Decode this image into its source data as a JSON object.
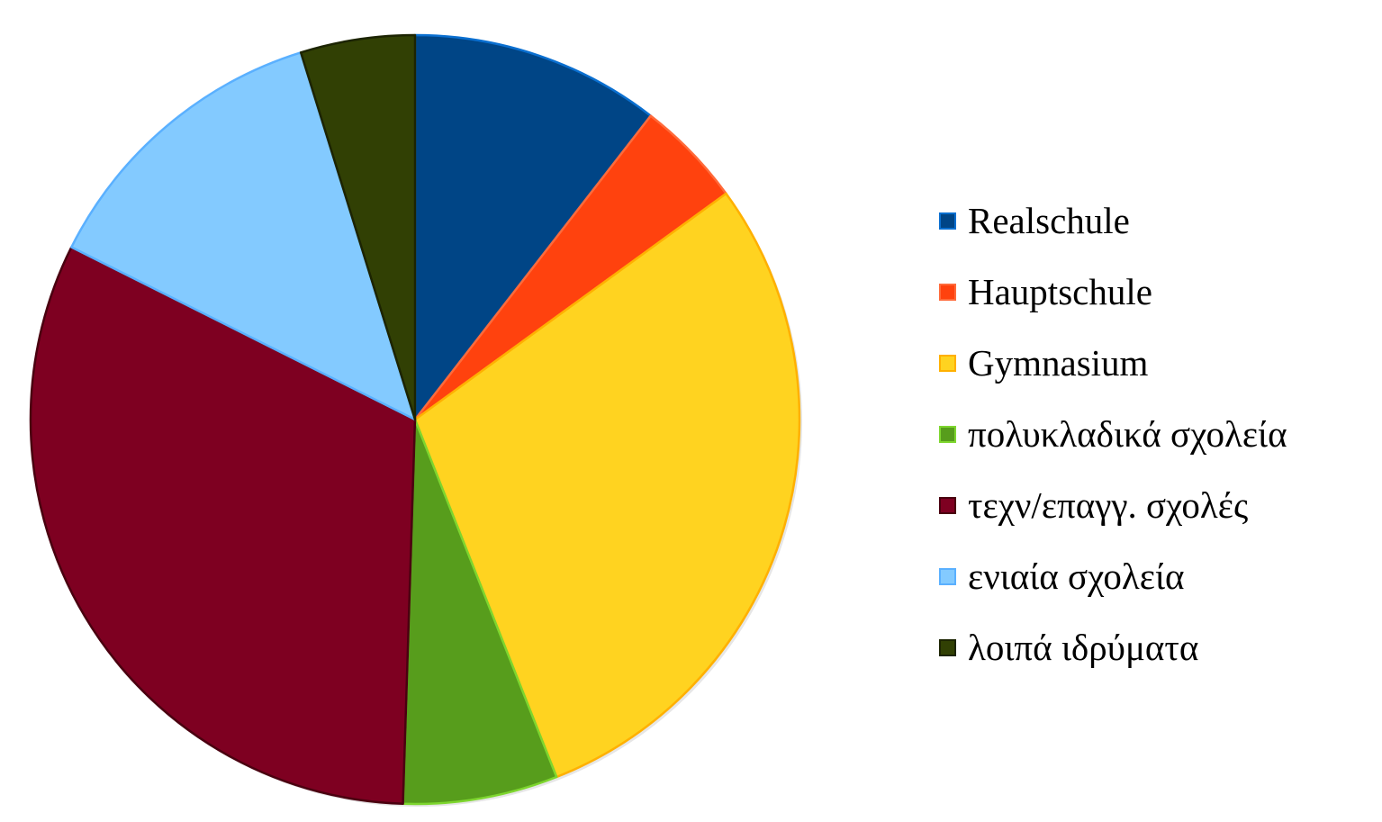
{
  "chart_data": {
    "type": "pie",
    "title": "",
    "legend_position": "right",
    "start_angle": "top, clockwise",
    "slices": [
      {
        "label": "Realschule",
        "value": 10.5,
        "color": "#004586",
        "edge": "#0a6fd0"
      },
      {
        "label": "Hauptschule",
        "value": 4.5,
        "color": "#ff420e",
        "edge": "#ff6a3a"
      },
      {
        "label": "Gymnasium",
        "value": 29.0,
        "color": "#ffd320",
        "edge": "#ffb000"
      },
      {
        "label": "πολυκλαδικά σχολεία",
        "value": 6.5,
        "color": "#579d1c",
        "edge": "#7ed62f"
      },
      {
        "label": "τεχν/επαγγ. σχολές",
        "value": 31.9,
        "color": "#7e0021",
        "edge": "#4a0010"
      },
      {
        "label": "ενιαία σχολεία",
        "value": 12.8,
        "color": "#83caff",
        "edge": "#5ab0ff"
      },
      {
        "label": "λοιπά ιδρύματα",
        "value": 4.8,
        "color": "#314004",
        "edge": "#1c2402"
      }
    ]
  }
}
